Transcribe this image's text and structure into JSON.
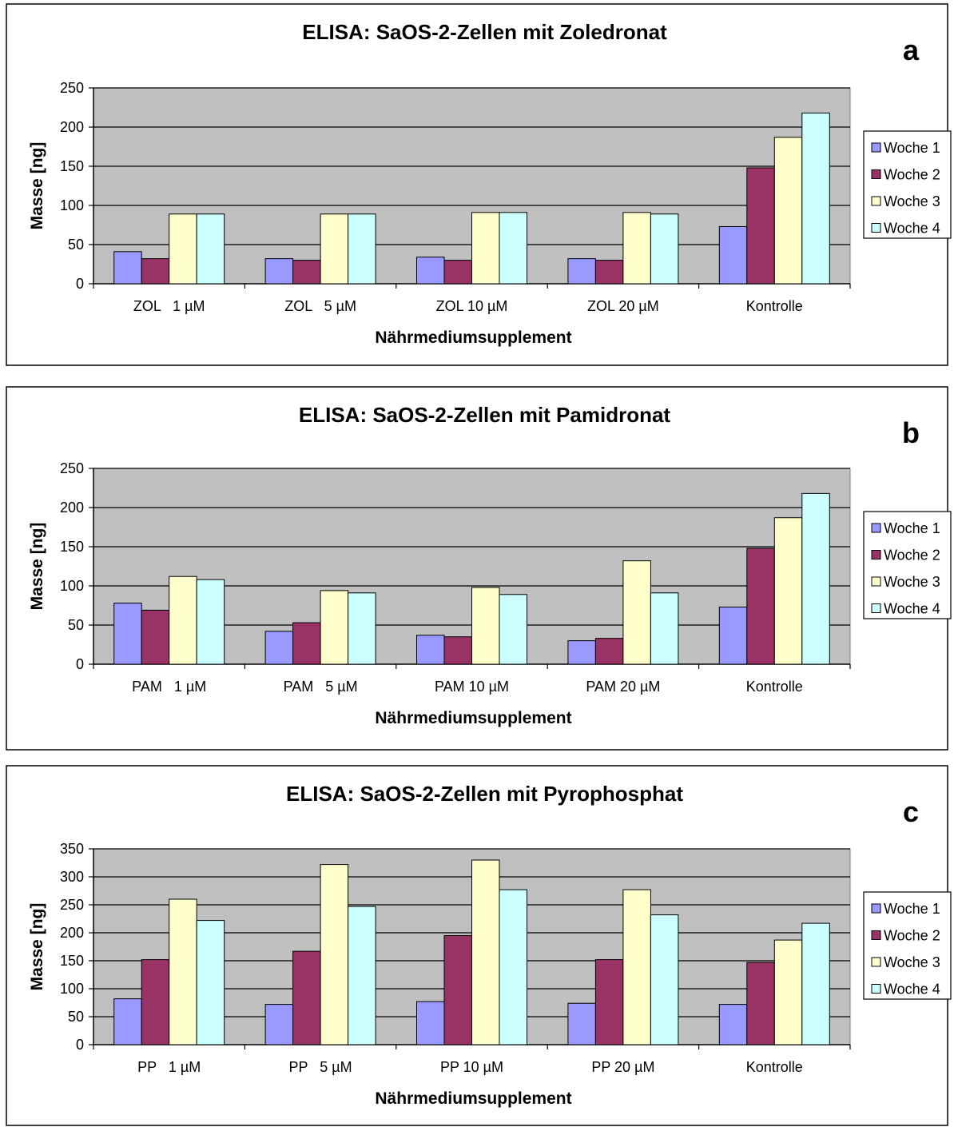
{
  "legend_series": [
    "Woche 1",
    "Woche 2",
    "Woche 3",
    "Woche 4"
  ],
  "series_colors": [
    "#9999ff",
    "#993366",
    "#ffffcc",
    "#ccffff"
  ],
  "plot_background": "#c0c0c0",
  "chart_data": [
    {
      "type": "bar",
      "panel_letter": "a",
      "title": "ELISA: SaOS-2-Zellen mit Zoledronat",
      "xlabel": "Nährmediumsupplement",
      "ylabel": "Masse [ng]",
      "ylim": [
        0,
        250
      ],
      "yticks": [
        0,
        50,
        100,
        150,
        200,
        250
      ],
      "categories": [
        "ZOL   1 µM",
        "ZOL   5 µM",
        "ZOL 10 µM",
        "ZOL 20 µM",
        "Kontrolle"
      ],
      "grid": true,
      "legend": "right",
      "series": [
        {
          "name": "Woche 1",
          "values": [
            41,
            32,
            34,
            32,
            73
          ]
        },
        {
          "name": "Woche 2",
          "values": [
            32,
            30,
            30,
            30,
            148
          ]
        },
        {
          "name": "Woche 3",
          "values": [
            89,
            89,
            91,
            91,
            187
          ]
        },
        {
          "name": "Woche 4",
          "values": [
            89,
            89,
            91,
            89,
            218
          ]
        }
      ]
    },
    {
      "type": "bar",
      "panel_letter": "b",
      "title": "ELISA: SaOS-2-Zellen mit Pamidronat",
      "xlabel": "Nährmediumsupplement",
      "ylabel": "Masse [ng]",
      "ylim": [
        0,
        250
      ],
      "yticks": [
        0,
        50,
        100,
        150,
        200,
        250
      ],
      "categories": [
        "PAM   1 µM",
        "PAM   5 µM",
        "PAM 10 µM",
        "PAM 20 µM",
        "Kontrolle"
      ],
      "grid": true,
      "legend": "right",
      "series": [
        {
          "name": "Woche 1",
          "values": [
            78,
            42,
            37,
            30,
            73
          ]
        },
        {
          "name": "Woche 2",
          "values": [
            69,
            53,
            35,
            33,
            148
          ]
        },
        {
          "name": "Woche 3",
          "values": [
            112,
            94,
            98,
            132,
            187
          ]
        },
        {
          "name": "Woche 4",
          "values": [
            108,
            91,
            89,
            91,
            218
          ]
        }
      ]
    },
    {
      "type": "bar",
      "panel_letter": "c",
      "title": "ELISA: SaOS-2-Zellen mit Pyrophosphat",
      "xlabel": "Nährmediumsupplement",
      "ylabel": "Masse [ng]",
      "ylim": [
        0,
        350
      ],
      "yticks": [
        0,
        50,
        100,
        150,
        200,
        250,
        300,
        350
      ],
      "categories": [
        "PP   1 µM",
        "PP   5 µM",
        "PP 10 µM",
        "PP 20 µM",
        "Kontrolle"
      ],
      "grid": true,
      "legend": "right",
      "series": [
        {
          "name": "Woche 1",
          "values": [
            82,
            72,
            77,
            74,
            72
          ]
        },
        {
          "name": "Woche 2",
          "values": [
            152,
            167,
            195,
            152,
            147
          ]
        },
        {
          "name": "Woche 3",
          "values": [
            260,
            322,
            330,
            277,
            187
          ]
        },
        {
          "name": "Woche 4",
          "values": [
            222,
            247,
            277,
            232,
            217
          ]
        }
      ]
    }
  ]
}
